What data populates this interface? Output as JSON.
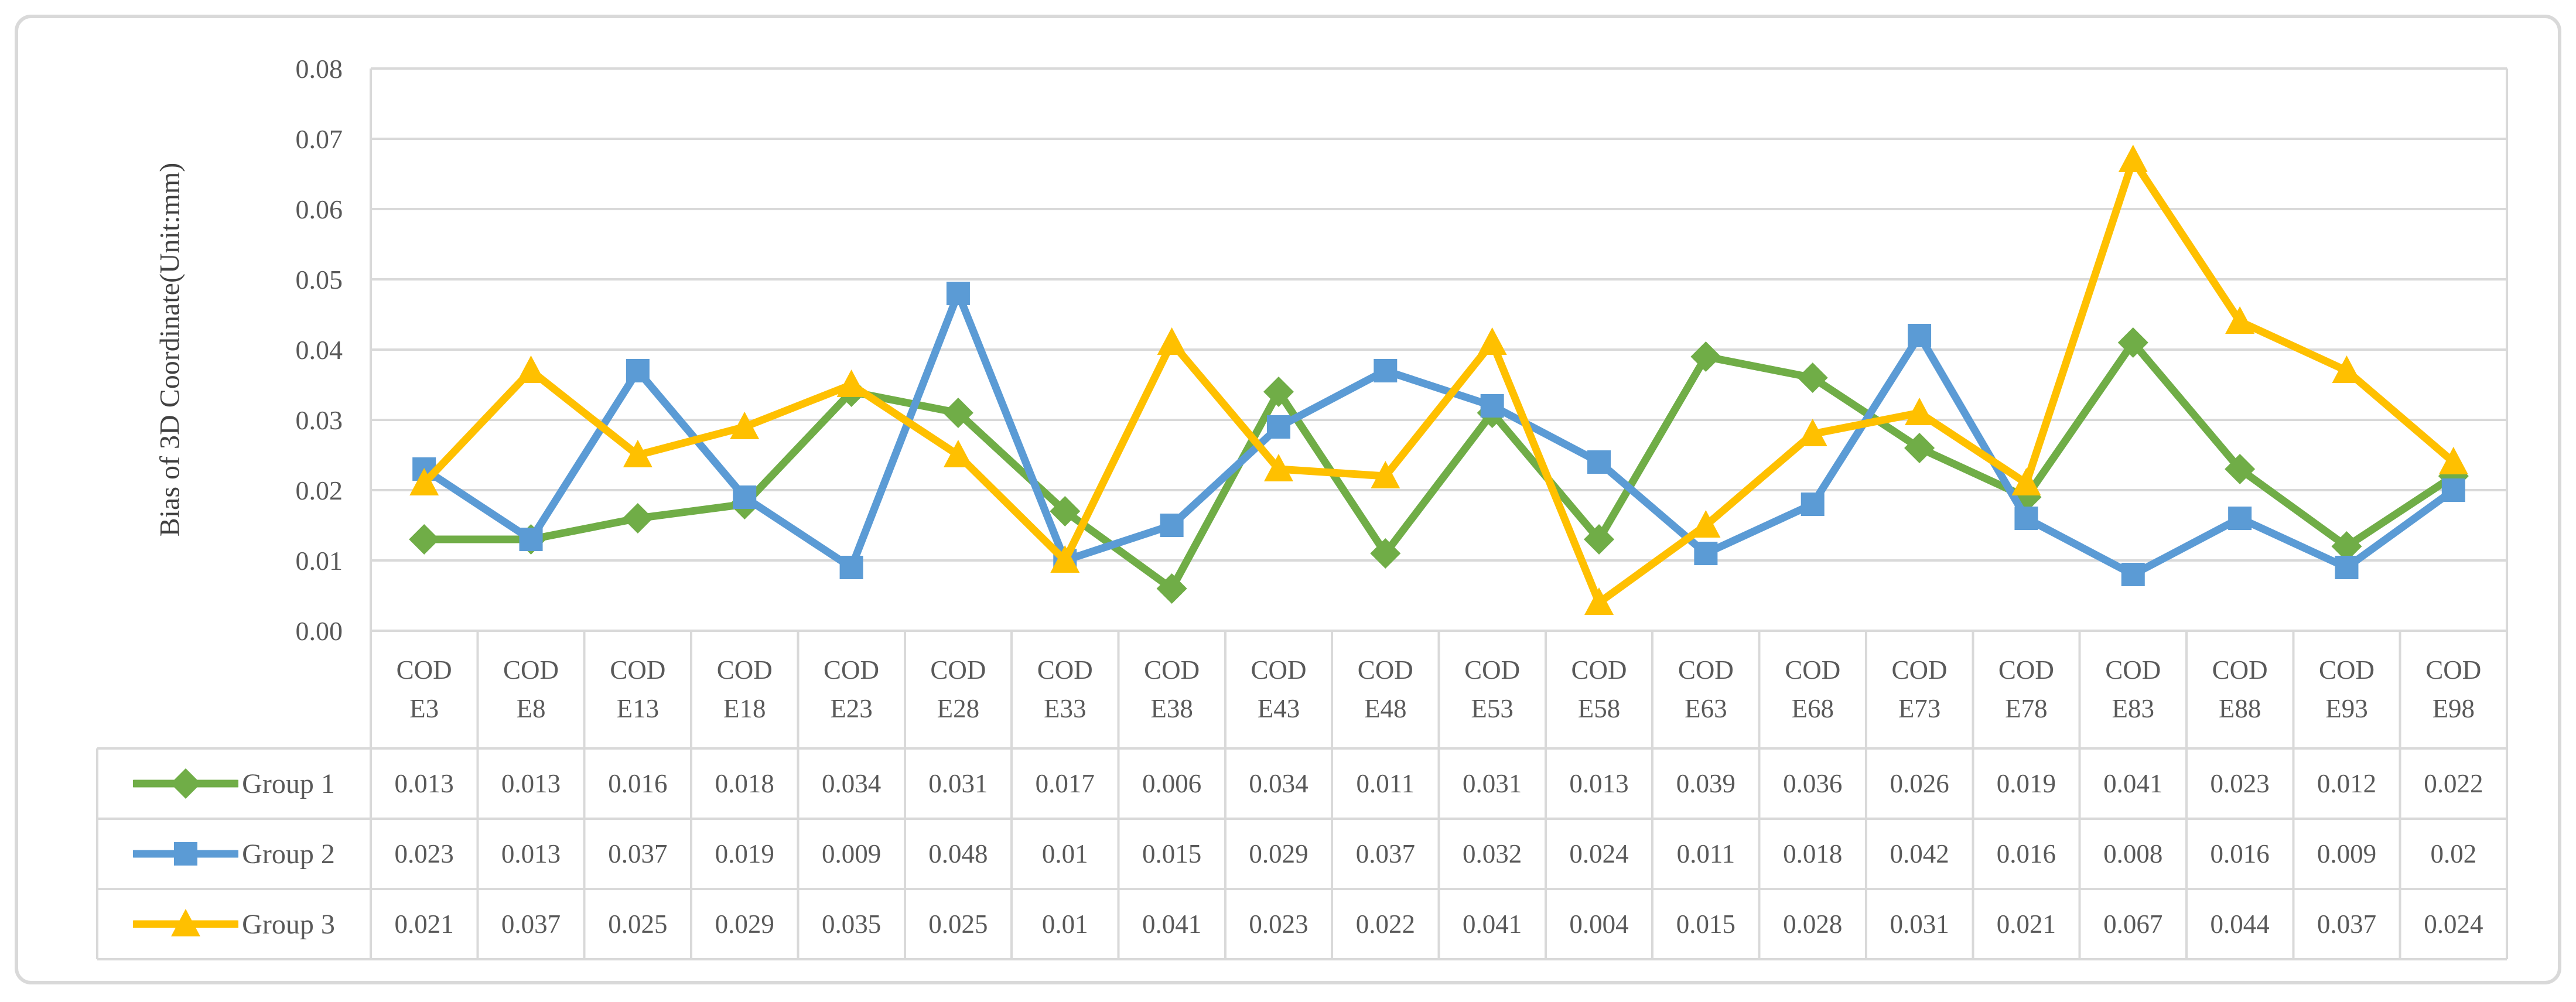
{
  "chart_data": {
    "type": "line",
    "title": "",
    "xlabel": "",
    "ylabel": "Bias of 3D Coordinate(Unit:mm)",
    "ylim": [
      0,
      0.08
    ],
    "ytick_step": 0.01,
    "ytick_labels": [
      "0.08",
      "0.07",
      "0.06",
      "0.05",
      "0.04",
      "0.03",
      "0.02",
      "0.01",
      "0.00"
    ],
    "grid": true,
    "legend_position": "data-table-left",
    "data_table_shown": true,
    "categories": [
      "CODE3",
      "CODE8",
      "CODE13",
      "CODE18",
      "CODE23",
      "CODE28",
      "CODE33",
      "CODE38",
      "CODE43",
      "CODE48",
      "CODE53",
      "CODE58",
      "CODE63",
      "CODE68",
      "CODE73",
      "CODE78",
      "CODE83",
      "CODE88",
      "CODE93",
      "CODE98"
    ],
    "category_wrap_chars": 3,
    "series": [
      {
        "name": "Group 1",
        "marker": "diamond",
        "color": "#70AD47",
        "values": [
          0.013,
          0.013,
          0.016,
          0.018,
          0.034,
          0.031,
          0.017,
          0.006,
          0.034,
          0.011,
          0.031,
          0.013,
          0.039,
          0.036,
          0.026,
          0.019,
          0.041,
          0.023,
          0.012,
          0.022
        ]
      },
      {
        "name": "Group 2",
        "marker": "square",
        "color": "#5B9BD5",
        "values": [
          0.023,
          0.013,
          0.037,
          0.019,
          0.009,
          0.048,
          0.01,
          0.015,
          0.029,
          0.037,
          0.032,
          0.024,
          0.011,
          0.018,
          0.042,
          0.016,
          0.008,
          0.016,
          0.009,
          0.02
        ]
      },
      {
        "name": "Group 3",
        "marker": "triangle",
        "color": "#FFC000",
        "values": [
          0.021,
          0.037,
          0.025,
          0.029,
          0.035,
          0.025,
          0.01,
          0.041,
          0.023,
          0.022,
          0.041,
          0.004,
          0.015,
          0.028,
          0.031,
          0.021,
          0.067,
          0.044,
          0.037,
          0.024
        ]
      }
    ]
  },
  "colors": {
    "grid": "#D9D9D9",
    "table_border": "#D9D9D9",
    "figure_border": "#D9D9D9",
    "text": "#595959",
    "background": "#FFFFFF"
  }
}
